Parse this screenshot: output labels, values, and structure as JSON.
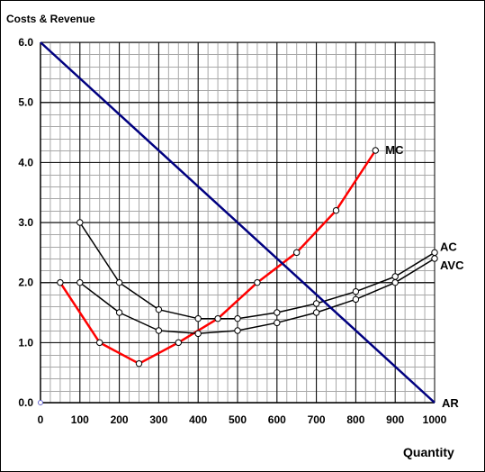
{
  "chart_data": {
    "type": "line",
    "ylabel": "Costs & Revenue",
    "xlabel": "Quantity",
    "xlim": [
      0,
      1000
    ],
    "ylim": [
      0,
      6
    ],
    "x_ticks": [
      "0",
      "100",
      "200",
      "300",
      "400",
      "500",
      "600",
      "700",
      "800",
      "900",
      "1000"
    ],
    "y_ticks": [
      "0.0",
      "1.0",
      "2.0",
      "3.0",
      "4.0",
      "5.0",
      "6.0"
    ],
    "x_tick_values": [
      0,
      100,
      200,
      300,
      400,
      500,
      600,
      700,
      800,
      900,
      1000
    ],
    "y_tick_values": [
      0,
      1,
      2,
      3,
      4,
      5,
      6
    ],
    "minor_grid_x_step": 25,
    "minor_grid_y_step": 0.2,
    "grid": true,
    "series": [
      {
        "name": "MC",
        "color": "#ff0000",
        "markers": true,
        "points": [
          [
            50,
            2.0
          ],
          [
            150,
            1.0
          ],
          [
            250,
            0.65
          ],
          [
            350,
            1.0
          ],
          [
            450,
            1.4
          ],
          [
            550,
            2.0
          ],
          [
            650,
            2.5
          ],
          [
            750,
            3.2
          ],
          [
            850,
            4.2
          ]
        ]
      },
      {
        "name": "AC",
        "color": "#000000",
        "markers": true,
        "points": [
          [
            100,
            3.0
          ],
          [
            200,
            2.0
          ],
          [
            300,
            1.55
          ],
          [
            400,
            1.4
          ],
          [
            500,
            1.4
          ],
          [
            600,
            1.5
          ],
          [
            700,
            1.65
          ],
          [
            800,
            1.85
          ],
          [
            900,
            2.1
          ],
          [
            1000,
            2.5
          ]
        ]
      },
      {
        "name": "AVC",
        "color": "#000000",
        "markers": true,
        "points": [
          [
            100,
            2.0
          ],
          [
            200,
            1.5
          ],
          [
            300,
            1.2
          ],
          [
            400,
            1.15
          ],
          [
            500,
            1.2
          ],
          [
            600,
            1.33
          ],
          [
            700,
            1.5
          ],
          [
            800,
            1.72
          ],
          [
            900,
            2.0
          ],
          [
            1000,
            2.4
          ]
        ]
      },
      {
        "name": "AR",
        "color": "#000080",
        "markers": false,
        "points": [
          [
            0,
            6.0
          ],
          [
            1000,
            0.0
          ]
        ]
      }
    ]
  }
}
